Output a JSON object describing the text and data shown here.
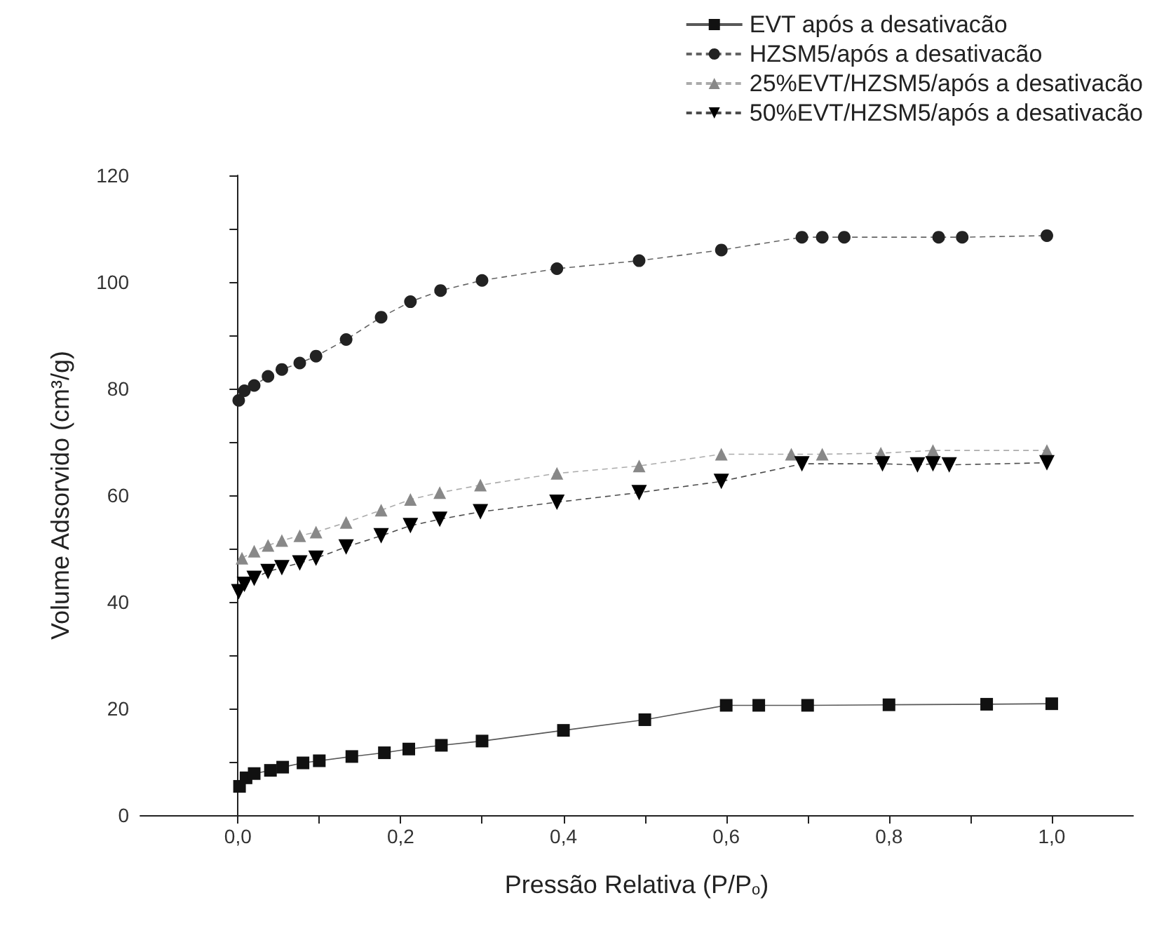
{
  "chart_data": {
    "type": "line",
    "xlabel": "Pressão Relativa (P/P$_{o}$)",
    "ylabel": "Volume Adsorvido (cm³/g)",
    "xlim": [
      -0.12,
      1.1
    ],
    "ylim": [
      0,
      120
    ],
    "xticks": [
      {
        "value": 0,
        "label": "0,0"
      },
      {
        "value": 0.1,
        "label": null
      },
      {
        "value": 0.2,
        "label": "0,2"
      },
      {
        "value": 0.3,
        "label": null
      },
      {
        "value": 0.4,
        "label": "0,4"
      },
      {
        "value": 0.5,
        "label": null
      },
      {
        "value": 0.6,
        "label": "0,6"
      },
      {
        "value": 0.7,
        "label": null
      },
      {
        "value": 0.8,
        "label": "0,8"
      },
      {
        "value": 0.9,
        "label": null
      },
      {
        "value": 1.0,
        "label": "1,0"
      }
    ],
    "yticks": [
      0,
      {
        "value": 10,
        "label": null
      },
      20,
      {
        "value": 30,
        "label": null
      },
      40,
      {
        "value": 50,
        "label": null
      },
      60,
      {
        "value": 70,
        "label": null
      },
      80,
      {
        "value": 90,
        "label": null
      },
      100,
      {
        "value": 110,
        "label": null
      },
      120
    ],
    "legend": "top right",
    "series": [
      {
        "name": "EVT após a desativacão",
        "color": "#111111",
        "marker": "square",
        "line_style": "solid",
        "x": [
          0.002,
          0.01,
          0.02,
          0.04,
          0.055,
          0.08,
          0.1,
          0.14,
          0.18,
          0.21,
          0.25,
          0.3,
          0.4,
          0.5,
          0.6,
          0.64,
          0.7,
          0.8,
          0.92,
          1.0
        ],
        "values": [
          5.4,
          7,
          7.8,
          8.4,
          9,
          9.8,
          10.2,
          11,
          11.7,
          12.4,
          13.1,
          13.9,
          15.9,
          17.9,
          20.6,
          20.6,
          20.6,
          20.7,
          20.8,
          20.9
        ]
      },
      {
        "name": "HZSM5/após a desativacão",
        "color": "#222222",
        "marker": "circle",
        "line_style": "dashed",
        "x": [
          0.001,
          0.008,
          0.02,
          0.037,
          0.054,
          0.076,
          0.096,
          0.133,
          0.176,
          0.212,
          0.249,
          0.3,
          0.392,
          0.493,
          0.594,
          0.693,
          0.718,
          0.745,
          0.861,
          0.89,
          0.994
        ],
        "values": [
          77.8,
          79.6,
          80.6,
          82.3,
          83.6,
          84.8,
          86.1,
          89.2,
          93.4,
          96.3,
          98.4,
          100.3,
          102.5,
          104,
          106,
          108.4,
          108.4,
          108.4,
          108.4,
          108.4,
          108.7
        ]
      },
      {
        "name": "25%EVT/HZSM5/após a desativacão",
        "color": "#888888",
        "marker": "triangle",
        "line_style": "dashed",
        "x": [
          0.005,
          0.02,
          0.037,
          0.054,
          0.076,
          0.096,
          0.133,
          0.176,
          0.212,
          0.248,
          0.298,
          0.392,
          0.493,
          0.594,
          0.68,
          0.718,
          0.79,
          0.854,
          0.994
        ],
        "values": [
          48.2,
          49.5,
          50.6,
          51.5,
          52.4,
          53.1,
          54.9,
          57.2,
          59.2,
          60.5,
          61.9,
          64.1,
          65.5,
          67.7,
          67.7,
          67.7,
          67.9,
          68.4,
          68.4
        ]
      },
      {
        "name": "50%EVT/HZSM5/após a desativacão",
        "color": "#000000",
        "marker": "triangle-down",
        "line_style": "dashed",
        "x": [
          0.001,
          0.008,
          0.02,
          0.037,
          0.054,
          0.076,
          0.096,
          0.133,
          0.176,
          0.212,
          0.248,
          0.298,
          0.392,
          0.493,
          0.594,
          0.693,
          0.792,
          0.835,
          0.854,
          0.874,
          0.994
        ],
        "values": [
          41.9,
          43.3,
          44.4,
          45.7,
          46.4,
          47.3,
          48.2,
          50.3,
          52.4,
          54.3,
          55.5,
          56.9,
          58.7,
          60.5,
          62.6,
          65.9,
          65.9,
          65.7,
          65.9,
          65.7,
          66.1
        ]
      }
    ]
  }
}
